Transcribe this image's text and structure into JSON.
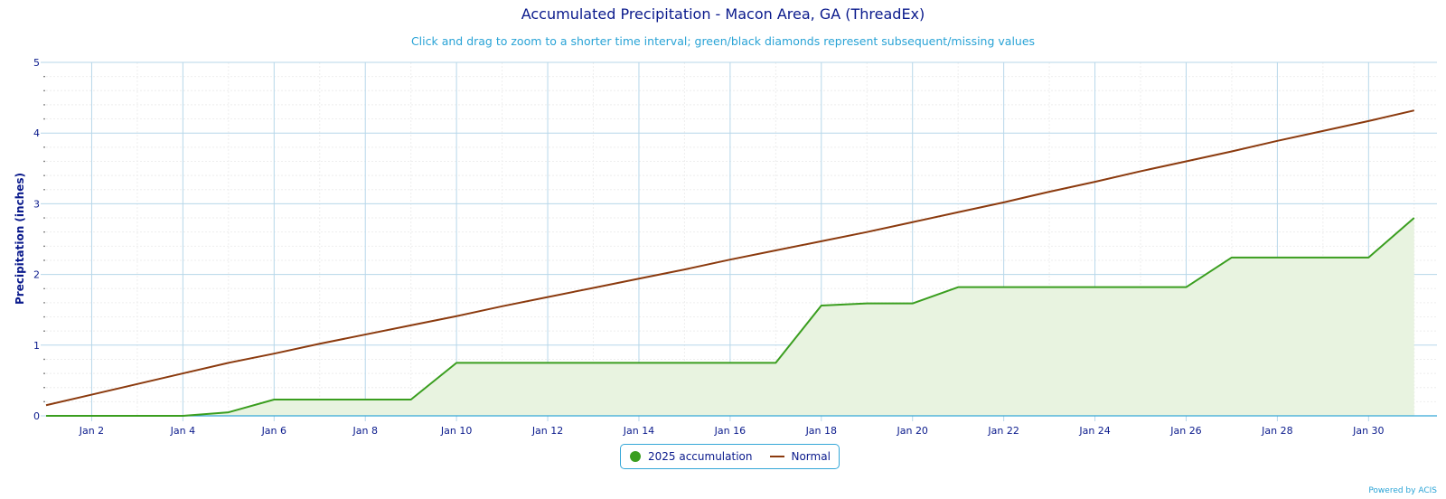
{
  "chart_data": {
    "type": "area",
    "title": "Accumulated Precipitation - Macon Area, GA (ThreadEx)",
    "subtitle": "Click and drag to zoom to a shorter time interval; green/black diamonds represent subsequent/missing values",
    "ylabel": "Precipitation (inches)",
    "xlabel": "",
    "ylim": [
      0,
      5
    ],
    "yticks": [
      "0",
      "1",
      "2",
      "3",
      "4",
      "5"
    ],
    "xlim": [
      1,
      31.5
    ],
    "xticks": [
      {
        "day": 2,
        "label": "Jan 2"
      },
      {
        "day": 4,
        "label": "Jan 4"
      },
      {
        "day": 6,
        "label": "Jan 6"
      },
      {
        "day": 8,
        "label": "Jan 8"
      },
      {
        "day": 10,
        "label": "Jan 10"
      },
      {
        "day": 12,
        "label": "Jan 12"
      },
      {
        "day": 14,
        "label": "Jan 14"
      },
      {
        "day": 16,
        "label": "Jan 16"
      },
      {
        "day": 18,
        "label": "Jan 18"
      },
      {
        "day": 20,
        "label": "Jan 20"
      },
      {
        "day": 22,
        "label": "Jan 22"
      },
      {
        "day": 24,
        "label": "Jan 24"
      },
      {
        "day": 26,
        "label": "Jan 26"
      },
      {
        "day": 28,
        "label": "Jan 28"
      },
      {
        "day": 30,
        "label": "Jan 30"
      }
    ],
    "grid": true,
    "legend_position": "bottom-center",
    "series": [
      {
        "name": "2025 accumulation",
        "color": "#3a9e1f",
        "fill": "#e8f3e0",
        "style": "area",
        "x": [
          1,
          2,
          3,
          4,
          5,
          6,
          7,
          8,
          9,
          10,
          11,
          12,
          13,
          14,
          15,
          16,
          17,
          18,
          19,
          20,
          21,
          22,
          23,
          24,
          25,
          26,
          27,
          28,
          29,
          30,
          31
        ],
        "values": [
          0,
          0,
          0,
          0,
          0.05,
          0.23,
          0.23,
          0.23,
          0.23,
          0.75,
          0.75,
          0.75,
          0.75,
          0.75,
          0.75,
          0.75,
          0.75,
          1.56,
          1.59,
          1.59,
          1.82,
          1.82,
          1.82,
          1.82,
          1.82,
          1.82,
          2.24,
          2.24,
          2.24,
          2.24,
          2.8
        ]
      },
      {
        "name": "Normal",
        "color": "#8b3a0e",
        "style": "line",
        "x": [
          1,
          2,
          3,
          4,
          5,
          6,
          7,
          8,
          9,
          10,
          11,
          12,
          13,
          14,
          15,
          16,
          17,
          18,
          19,
          20,
          21,
          22,
          23,
          24,
          25,
          26,
          27,
          28,
          29,
          30,
          31
        ],
        "values": [
          0.15,
          0.3,
          0.45,
          0.6,
          0.75,
          0.88,
          1.02,
          1.15,
          1.28,
          1.41,
          1.55,
          1.68,
          1.81,
          1.94,
          2.07,
          2.21,
          2.34,
          2.47,
          2.6,
          2.74,
          2.88,
          3.02,
          3.17,
          3.31,
          3.46,
          3.6,
          3.74,
          3.89,
          4.03,
          4.17,
          4.32
        ]
      }
    ]
  },
  "credit": "Powered by ACIS"
}
